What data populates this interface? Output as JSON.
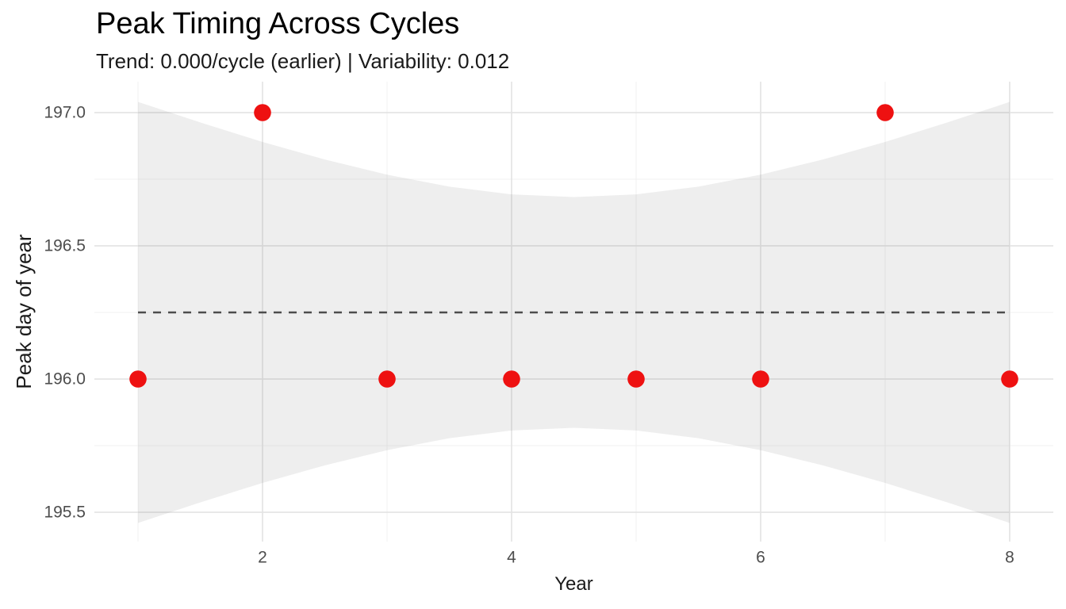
{
  "chart_data": {
    "type": "scatter",
    "title": "Peak Timing Across Cycles",
    "subtitle": "Trend: 0.000/cycle (earlier) | Variability: 0.012",
    "xlabel": "Year",
    "ylabel": "Peak day of year",
    "x": [
      1,
      2,
      3,
      4,
      5,
      6,
      7,
      8
    ],
    "y": [
      196,
      197,
      196,
      196,
      196,
      196,
      197,
      196
    ],
    "xlim": [
      0.65,
      8.35
    ],
    "ylim": [
      195.39,
      197.12
    ],
    "grid": true,
    "legend": false,
    "axes": {
      "x_tick_values": [
        2,
        4,
        6,
        8
      ],
      "x_tick_labels": [
        "2",
        "4",
        "6",
        "8"
      ],
      "x_minor_tick_values": [
        1,
        3,
        5,
        7
      ],
      "y_tick_values": [
        195.5,
        196.0,
        196.5,
        197.0
      ],
      "y_tick_labels": [
        "195.5",
        "196.0",
        "196.5",
        "197.0"
      ],
      "y_minor_tick_values": [
        195.75,
        196.25,
        196.75
      ]
    },
    "mean_line": {
      "value": 196.25,
      "style": "dashed",
      "x_start": 1,
      "x_end": 8
    },
    "confidence_band": {
      "x": [
        1.0,
        1.5,
        2.0,
        2.5,
        3.0,
        3.5,
        4.0,
        4.5,
        5.0,
        5.5,
        6.0,
        6.5,
        7.0,
        7.5,
        8.0
      ],
      "upper": [
        197.04,
        196.963,
        196.89,
        196.824,
        196.767,
        196.722,
        196.693,
        196.683,
        196.693,
        196.722,
        196.767,
        196.824,
        196.89,
        196.963,
        197.04
      ],
      "lower": [
        195.46,
        195.537,
        195.61,
        195.676,
        195.733,
        195.778,
        195.807,
        195.817,
        195.807,
        195.778,
        195.733,
        195.676,
        195.61,
        195.537,
        195.46
      ]
    },
    "colors": {
      "point": "#EE1111",
      "band": "rgba(125,125,125,0.13)",
      "mean_line": "#4d4d4d",
      "grid_major": "#e4e4e4",
      "grid_minor": "#f1f1f1",
      "tick_text": "#4d4d4d",
      "background": "#ffffff"
    }
  }
}
